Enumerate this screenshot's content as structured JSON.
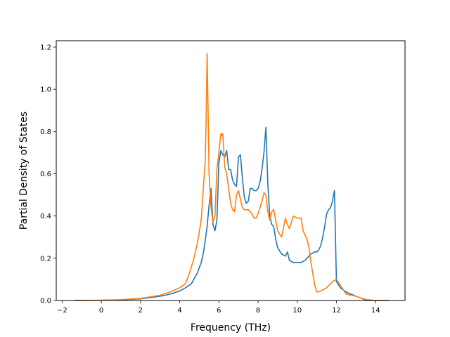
{
  "chart_data": {
    "type": "line",
    "title": "",
    "xlabel": "Frequency (THz)",
    "ylabel": "Partial Density of States",
    "xlim": [
      -2.3,
      15.5
    ],
    "ylim": [
      0,
      1.23
    ],
    "xticks": [
      -2,
      0,
      2,
      4,
      6,
      8,
      10,
      12,
      14
    ],
    "xtick_labels": [
      "−2",
      "0",
      "2",
      "4",
      "6",
      "8",
      "10",
      "12",
      "14"
    ],
    "yticks": [
      0.0,
      0.2,
      0.4,
      0.6,
      0.8,
      1.0,
      1.2
    ],
    "ytick_labels": [
      "0.0",
      "0.2",
      "0.4",
      "0.6",
      "0.8",
      "1.0",
      "1.2"
    ],
    "grid": false,
    "legend": "none",
    "series": [
      {
        "color": "#1f77b4",
        "x": [
          -1.4,
          0.0,
          1.0,
          2.0,
          3.0,
          3.5,
          4.0,
          4.3,
          4.6,
          4.9,
          5.1,
          5.2,
          5.3,
          5.4,
          5.5,
          5.6,
          5.7,
          5.8,
          5.9,
          6.0,
          6.1,
          6.2,
          6.3,
          6.4,
          6.5,
          6.6,
          6.7,
          6.8,
          6.9,
          7.0,
          7.1,
          7.2,
          7.3,
          7.4,
          7.5,
          7.6,
          7.7,
          7.8,
          7.9,
          8.0,
          8.1,
          8.2,
          8.3,
          8.4,
          8.5,
          8.6,
          8.7,
          8.8,
          8.9,
          9.0,
          9.2,
          9.4,
          9.5,
          9.6,
          9.8,
          10.0,
          10.2,
          10.4,
          10.5,
          10.7,
          10.9,
          11.0,
          11.1,
          11.2,
          11.3,
          11.4,
          11.5,
          11.6,
          11.7,
          11.8,
          11.85,
          11.9,
          12.0,
          12.2,
          12.5,
          13.0,
          13.3,
          13.5,
          14.0,
          14.7
        ],
        "y": [
          0.0,
          0.001,
          0.003,
          0.008,
          0.02,
          0.03,
          0.045,
          0.06,
          0.08,
          0.13,
          0.18,
          0.22,
          0.28,
          0.35,
          0.45,
          0.53,
          0.36,
          0.33,
          0.38,
          0.65,
          0.71,
          0.69,
          0.68,
          0.71,
          0.62,
          0.62,
          0.57,
          0.55,
          0.54,
          0.68,
          0.69,
          0.58,
          0.49,
          0.46,
          0.47,
          0.53,
          0.53,
          0.52,
          0.52,
          0.53,
          0.56,
          0.62,
          0.7,
          0.82,
          0.55,
          0.4,
          0.36,
          0.35,
          0.29,
          0.25,
          0.22,
          0.21,
          0.23,
          0.19,
          0.18,
          0.18,
          0.18,
          0.19,
          0.2,
          0.22,
          0.23,
          0.23,
          0.24,
          0.26,
          0.3,
          0.35,
          0.41,
          0.43,
          0.44,
          0.47,
          0.5,
          0.52,
          0.09,
          0.06,
          0.04,
          0.02,
          0.01,
          0.0,
          0.0,
          0.0
        ]
      },
      {
        "color": "#ff7f0e",
        "x": [
          -1.4,
          0.0,
          1.0,
          2.0,
          3.0,
          3.5,
          4.0,
          4.3,
          4.5,
          4.7,
          4.9,
          5.1,
          5.2,
          5.3,
          5.35,
          5.4,
          5.45,
          5.5,
          5.6,
          5.7,
          5.8,
          5.9,
          6.0,
          6.1,
          6.15,
          6.2,
          6.3,
          6.4,
          6.5,
          6.6,
          6.7,
          6.8,
          6.9,
          7.0,
          7.1,
          7.2,
          7.3,
          7.4,
          7.5,
          7.6,
          7.7,
          7.8,
          7.9,
          8.0,
          8.1,
          8.2,
          8.3,
          8.4,
          8.5,
          8.6,
          8.7,
          8.8,
          8.9,
          9.0,
          9.2,
          9.4,
          9.5,
          9.6,
          9.8,
          10.0,
          10.2,
          10.3,
          10.5,
          10.6,
          10.7,
          10.9,
          11.0,
          11.2,
          11.5,
          11.8,
          12.0,
          12.5,
          13.0,
          13.3,
          13.5,
          14.0,
          14.7
        ],
        "y": [
          0.0,
          0.001,
          0.004,
          0.01,
          0.025,
          0.04,
          0.06,
          0.08,
          0.13,
          0.19,
          0.27,
          0.38,
          0.52,
          0.66,
          0.85,
          1.17,
          0.9,
          0.6,
          0.44,
          0.37,
          0.4,
          0.62,
          0.7,
          0.79,
          0.78,
          0.79,
          0.63,
          0.6,
          0.53,
          0.46,
          0.43,
          0.42,
          0.5,
          0.52,
          0.48,
          0.44,
          0.43,
          0.43,
          0.43,
          0.42,
          0.41,
          0.39,
          0.39,
          0.41,
          0.44,
          0.47,
          0.51,
          0.5,
          0.42,
          0.38,
          0.42,
          0.43,
          0.38,
          0.33,
          0.3,
          0.39,
          0.36,
          0.34,
          0.4,
          0.39,
          0.39,
          0.33,
          0.29,
          0.25,
          0.18,
          0.07,
          0.04,
          0.045,
          0.06,
          0.09,
          0.1,
          0.03,
          0.02,
          0.01,
          0.005,
          0.0,
          0.0
        ]
      }
    ]
  }
}
